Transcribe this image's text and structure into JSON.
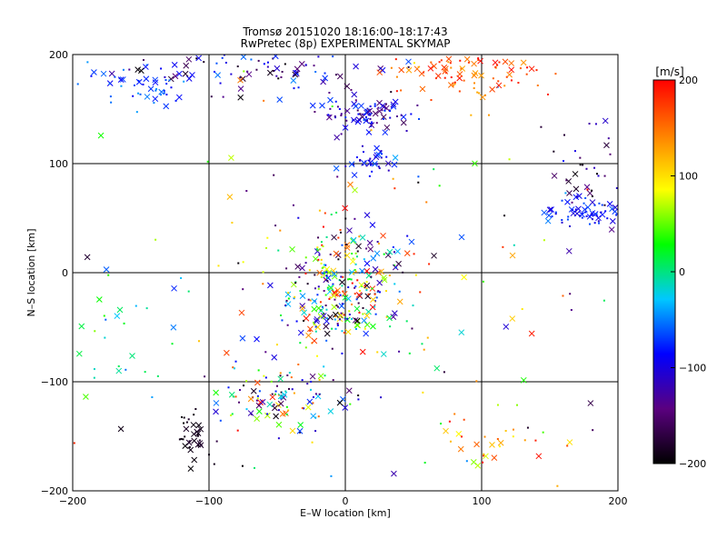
{
  "chart_data": {
    "type": "scatter",
    "title": "Tromsø 20151020  18:16:00–18:17:43",
    "subtitle": "RwPretec (8p) EXPERIMENTAL SKYMAP",
    "xlabel": "E–W location [km]",
    "ylabel": "N–S location [km]",
    "xlim": [
      -200,
      200
    ],
    "ylim": [
      -200,
      200
    ],
    "xticks": [
      -200,
      -100,
      0,
      100,
      200
    ],
    "yticks": [
      -200,
      -100,
      0,
      100,
      200
    ],
    "grid": true,
    "colorbar": {
      "label": "[m/s]",
      "range": [
        -200,
        200
      ],
      "ticks": [
        200,
        100,
        0,
        -100,
        -200
      ],
      "colors": [
        "#000000",
        "#5a007f",
        "#0000ff",
        "#00c8ff",
        "#00ff00",
        "#ffff00",
        "#ff8000",
        "#ff0000"
      ]
    },
    "markers": [
      "cross",
      "dot"
    ],
    "clusters": [
      {
        "x": 0,
        "y": -5,
        "sx": 22,
        "sy": 28,
        "n": 230,
        "v": [
          -200,
          200
        ]
      },
      {
        "x": -15,
        "y": -40,
        "sx": 15,
        "sy": 10,
        "n": 60,
        "v": [
          -200,
          200
        ]
      },
      {
        "x": 15,
        "y": 145,
        "sx": 18,
        "sy": 7,
        "n": 90,
        "v": [
          -160,
          -60
        ]
      },
      {
        "x": 15,
        "y": 102,
        "sx": 8,
        "sy": 7,
        "n": 35,
        "v": [
          -120,
          -60
        ]
      },
      {
        "x": -70,
        "y": 190,
        "sx": 55,
        "sy": 12,
        "n": 110,
        "v": [
          -200,
          -40
        ]
      },
      {
        "x": 90,
        "y": 185,
        "sx": 30,
        "sy": 12,
        "n": 90,
        "v": [
          120,
          200
        ]
      },
      {
        "x": 180,
        "y": 55,
        "sx": 20,
        "sy": 6,
        "n": 70,
        "v": [
          -110,
          -60
        ]
      },
      {
        "x": 180,
        "y": 95,
        "sx": 15,
        "sy": 25,
        "n": 40,
        "v": [
          -200,
          -80
        ]
      },
      {
        "x": -50,
        "y": -115,
        "sx": 30,
        "sy": 15,
        "n": 110,
        "v": [
          -200,
          200
        ]
      },
      {
        "x": -112,
        "y": -150,
        "sx": 7,
        "sy": 10,
        "n": 35,
        "v": [
          -200,
          -180
        ]
      },
      {
        "x": -150,
        "y": 170,
        "sx": 20,
        "sy": 10,
        "n": 45,
        "v": [
          -90,
          -40
        ]
      },
      {
        "x": -170,
        "y": -70,
        "sx": 25,
        "sy": 25,
        "n": 25,
        "v": [
          -60,
          60
        ]
      },
      {
        "x": 110,
        "y": -150,
        "sx": 25,
        "sy": 12,
        "n": 30,
        "v": [
          40,
          200
        ]
      },
      {
        "x": 30,
        "y": 0,
        "sx": 60,
        "sy": 60,
        "n": 60,
        "v": [
          -200,
          200
        ]
      },
      {
        "x": 0,
        "y": 0,
        "sx": 130,
        "sy": 130,
        "n": 110,
        "v": [
          -200,
          200
        ]
      }
    ]
  }
}
